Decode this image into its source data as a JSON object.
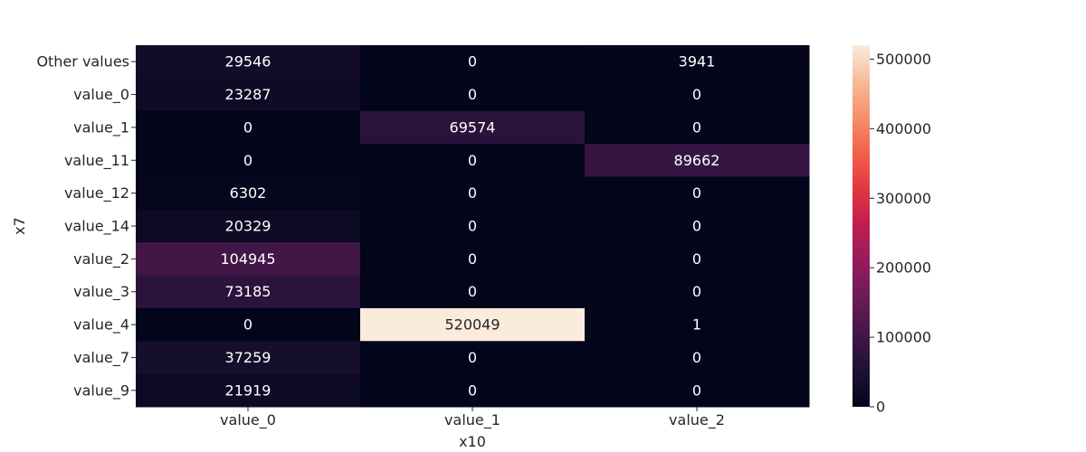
{
  "chart_data": {
    "type": "heatmap",
    "title": "",
    "xlabel": "x10",
    "ylabel": "x7",
    "x_categories": [
      "value_0",
      "value_1",
      "value_2"
    ],
    "y_categories": [
      "Other values",
      "value_0",
      "value_1",
      "value_11",
      "value_12",
      "value_14",
      "value_2",
      "value_3",
      "value_4",
      "value_7",
      "value_9"
    ],
    "values": [
      [
        29546,
        0,
        3941
      ],
      [
        23287,
        0,
        0
      ],
      [
        0,
        69574,
        0
      ],
      [
        0,
        0,
        89662
      ],
      [
        6302,
        0,
        0
      ],
      [
        20329,
        0,
        0
      ],
      [
        104945,
        0,
        0
      ],
      [
        73185,
        0,
        0
      ],
      [
        0,
        520049,
        1
      ],
      [
        37259,
        0,
        0
      ],
      [
        21919,
        0,
        0
      ]
    ],
    "colorbar": {
      "min": 0,
      "max": 520049,
      "ticks": [
        0,
        100000,
        200000,
        300000,
        400000,
        500000
      ],
      "tick_labels": [
        "0",
        "100000",
        "200000",
        "300000",
        "400000",
        "500000"
      ],
      "colormap": "rocket"
    }
  }
}
